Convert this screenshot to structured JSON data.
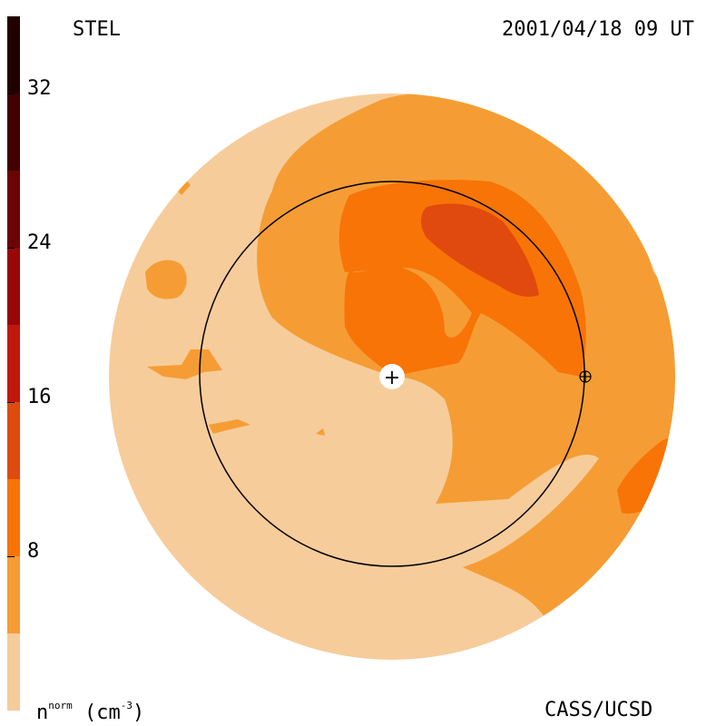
{
  "header": {
    "observatory": "STEL",
    "timestamp": "2001/04/18 09 UT"
  },
  "footer": {
    "quantity": "n",
    "quantity_superscript": "norm",
    "unit_open": "(cm",
    "unit_exponent": "-3",
    "unit_close": ")",
    "credit": "CASS/UCSD"
  },
  "color_scale": {
    "ticks": [
      "8",
      "16",
      "24",
      "32"
    ],
    "tick_values": [
      8,
      16,
      24,
      32
    ],
    "max_value": 36,
    "bands": [
      {
        "from": 0,
        "to": 4,
        "color": "#f6cc9b"
      },
      {
        "from": 4,
        "to": 8,
        "color": "#f59d34"
      },
      {
        "from": 8,
        "to": 12,
        "color": "#f87406"
      },
      {
        "from": 12,
        "to": 16,
        "color": "#e04a0e"
      },
      {
        "from": 16,
        "to": 20,
        "color": "#c2180c"
      },
      {
        "from": 20,
        "to": 24,
        "color": "#9a0707"
      },
      {
        "from": 24,
        "to": 28,
        "color": "#6b0505"
      },
      {
        "from": 28,
        "to": 32,
        "color": "#430000"
      },
      {
        "from": 32,
        "to": 36,
        "color": "#220000"
      }
    ]
  },
  "map": {
    "background_color": "#f6cc9b",
    "earth_marker": "+",
    "earth_orbit_marker": "⊕"
  }
}
